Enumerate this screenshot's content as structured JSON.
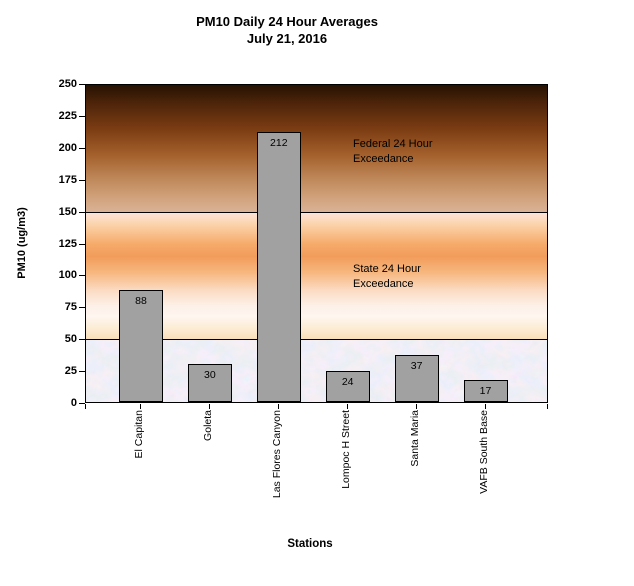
{
  "chart_data": {
    "type": "bar",
    "title": "PM10 Daily 24 Hour Averages",
    "subtitle": "July 21, 2016",
    "categories": [
      "El Capitan",
      "Goleta",
      "Las Flores Canyon",
      "Lompoc H Street",
      "Santa Maria",
      "VAFB South Base"
    ],
    "values": [
      88,
      30,
      212,
      24,
      37,
      17
    ],
    "xlabel": "Stations",
    "ylabel": "PM10 (ug/m3)",
    "ylim": [
      0,
      250
    ],
    "y_tick_interval": 25,
    "grid": false,
    "legend": false,
    "bar_color": "#a1a1a1",
    "zones": [
      {
        "name": "federal-exceedance",
        "from": 150,
        "to": 250,
        "label_line1": "Federal 24 Hour",
        "label_line2": "Exceedance",
        "style": "brown-gradient"
      },
      {
        "name": "state-exceedance",
        "from": 50,
        "to": 150,
        "label_line1": "State 24 Hour",
        "label_line2": "Exceedance",
        "style": "orange-gradient"
      },
      {
        "name": "below-standard",
        "from": 0,
        "to": 50,
        "label_line1": "",
        "label_line2": "",
        "style": "blue-tissue-texture"
      }
    ],
    "threshold_lines": [
      150,
      50
    ],
    "colors": {
      "bar_fill": "#a1a1a1",
      "bar_border": "#000000",
      "federal_zone_top": "#261202",
      "federal_zone_bottom": "#d9b296",
      "state_zone_peak": "#f29c5b",
      "safe_zone_base": "#cdd8ec",
      "text": "#000000"
    }
  }
}
